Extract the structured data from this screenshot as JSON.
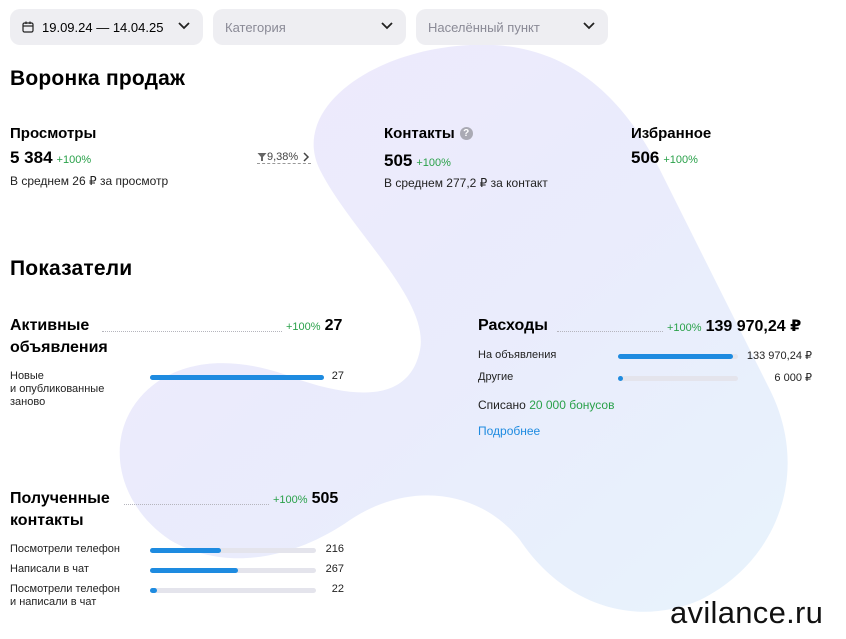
{
  "filters": {
    "date_range": "19.09.24 — 14.04.25",
    "category_placeholder": "Категория",
    "locality_placeholder": "Населённый пункт"
  },
  "funnel": {
    "title": "Воронка продаж",
    "views": {
      "label": "Просмотры",
      "value": "5 384",
      "change": "+100%",
      "sub": "В среднем 26 ₽ за просмотр"
    },
    "conversion": "9,38%",
    "contacts": {
      "label": "Контакты",
      "help": "?",
      "value": "505",
      "change": "+100%",
      "sub": "В среднем 277,2 ₽ за контакт"
    },
    "favorites": {
      "label": "Избранное",
      "value": "506",
      "change": "+100%"
    }
  },
  "indicators": {
    "title": "Показатели",
    "active_ads": {
      "title_line1": "Активные",
      "title_line2": "объявления",
      "change": "+100%",
      "value": "27",
      "rows": [
        {
          "label_line1": "Новые",
          "label_line2": "и опубликованные",
          "label_line3": "заново",
          "value": "27",
          "fraction": 1.0
        }
      ]
    },
    "expenses": {
      "title": "Расходы",
      "change": "+100%",
      "value": "139 970,24 ₽",
      "rows": [
        {
          "label": "На объявления",
          "value": "133 970,24 ₽",
          "fraction": 0.957
        },
        {
          "label": "Другие",
          "value": "6 000 ₽",
          "fraction": 0.043
        }
      ],
      "written_off_prefix": "Списано",
      "written_off_bonus": "20 000 бонусов",
      "details_link": "Подробнее"
    },
    "contacts_received": {
      "title_line1": "Полученные",
      "title_line2": "контакты",
      "change": "+100%",
      "value": "505",
      "rows": [
        {
          "label_line1": "Посмотрели телефон",
          "label_line2": "",
          "value": "216",
          "fraction": 0.43
        },
        {
          "label_line1": "Написали в чат",
          "label_line2": "",
          "value": "267",
          "fraction": 0.53
        },
        {
          "label_line1": "Посмотрели телефон",
          "label_line2": "и написали в чат",
          "value": "22",
          "fraction": 0.044
        }
      ]
    }
  },
  "watermark": {
    "site": "avilance.ru"
  },
  "colors": {
    "accent_blue": "#1e8be0",
    "change_green": "#2aa14a",
    "filter_bg": "#eeeef2"
  }
}
